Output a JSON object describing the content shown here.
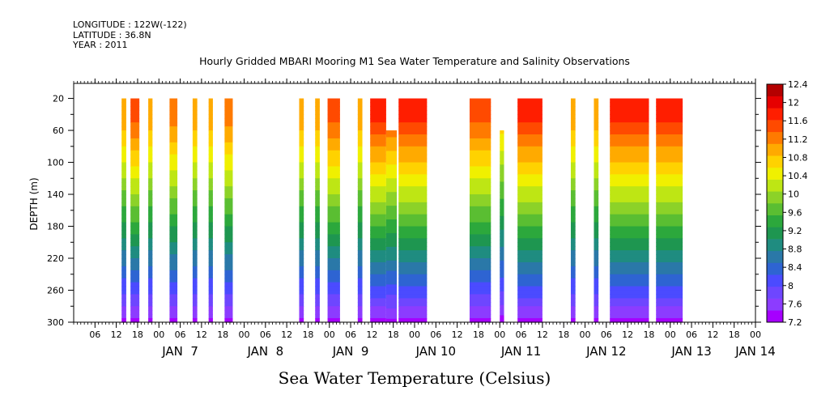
{
  "header": {
    "longitude": "LONGITUDE : 122W(-122)",
    "latitude": "LATITUDE : 36.8N",
    "year": "YEAR : 2011"
  },
  "chart_data": {
    "type": "heatmap",
    "title": "Hourly Gridded MBARI Mooring M1 Sea Water Temperature and Salinity Observations",
    "variable_label": "Sea Water Temperature (Celsius)",
    "ylabel": "DEPTH (m)",
    "x_axis": {
      "unit": "hours since Jan 6 00:00 (2011)",
      "range": [
        0,
        192
      ],
      "hour_ticks": [
        "06",
        "12",
        "18",
        "00",
        "06",
        "12",
        "18",
        "00",
        "06",
        "12",
        "18",
        "00",
        "06",
        "12",
        "18",
        "00",
        "06",
        "12",
        "18",
        "00",
        "06",
        "12",
        "18",
        "00",
        "06",
        "12",
        "18",
        "00",
        "06",
        "12",
        "18",
        "00"
      ],
      "date_labels": [
        {
          "label": "JAN  7",
          "hour": 30
        },
        {
          "label": "JAN  8",
          "hour": 54
        },
        {
          "label": "JAN  9",
          "hour": 78
        },
        {
          "label": "JAN 10",
          "hour": 102
        },
        {
          "label": "JAN 11",
          "hour": 126
        },
        {
          "label": "JAN 12",
          "hour": 150
        },
        {
          "label": "JAN 13",
          "hour": 174
        },
        {
          "label": "JAN 14",
          "hour": 192
        }
      ]
    },
    "y_axis": {
      "range": [
        300,
        0
      ],
      "inverted": true,
      "tick_labels": [
        "20",
        "60",
        "100",
        "140",
        "180",
        "220",
        "260",
        "300"
      ],
      "tick_values": [
        20,
        60,
        100,
        140,
        180,
        220,
        260,
        300
      ]
    },
    "colorbar": {
      "labels": [
        "12.4",
        "12",
        "11.6",
        "11.2",
        "10.8",
        "10.4",
        "10",
        "9.6",
        "9.2",
        "8.8",
        "8.4",
        "8",
        "7.6",
        "7.2"
      ],
      "min": 7.2,
      "max": 12.4,
      "step": 0.2
    },
    "colors": [
      "#a600ff",
      "#8c3cff",
      "#6e46ff",
      "#4b4bff",
      "#2e64d2",
      "#2a78a8",
      "#1f8c80",
      "#1e9650",
      "#2ca83c",
      "#5abe32",
      "#8cd228",
      "#bee614",
      "#f0f000",
      "#ffd200",
      "#ffaa00",
      "#ff7a00",
      "#ff4a00",
      "#ff1e00",
      "#e60000",
      "#b40000"
    ],
    "segments": [
      {
        "start": 13.5,
        "end": 14.8,
        "top": 20,
        "warm": 0.85
      },
      {
        "start": 16.0,
        "end": 18.5,
        "top": 20,
        "warm": 0.95
      },
      {
        "start": 21.0,
        "end": 22.2,
        "top": 20,
        "warm": 0.85
      },
      {
        "start": 27.0,
        "end": 29.2,
        "top": 20,
        "warm": 0.9
      },
      {
        "start": 33.5,
        "end": 34.8,
        "top": 20,
        "warm": 0.85
      },
      {
        "start": 38.0,
        "end": 39.2,
        "top": 20,
        "warm": 0.85
      },
      {
        "start": 42.5,
        "end": 44.8,
        "top": 20,
        "warm": 0.9
      },
      {
        "start": 63.5,
        "end": 64.8,
        "top": 20,
        "warm": 0.85
      },
      {
        "start": 68.0,
        "end": 69.3,
        "top": 20,
        "warm": 0.85
      },
      {
        "start": 71.5,
        "end": 75.0,
        "top": 20,
        "warm": 0.95
      },
      {
        "start": 80.0,
        "end": 81.3,
        "top": 20,
        "warm": 0.85
      },
      {
        "start": 83.5,
        "end": 88.0,
        "top": 20,
        "warm": 1.0
      },
      {
        "start": 88.0,
        "end": 91.0,
        "top": 60,
        "warm": 0.95
      },
      {
        "start": 91.5,
        "end": 99.5,
        "top": 20,
        "warm": 1.0
      },
      {
        "start": 111.5,
        "end": 117.5,
        "top": 20,
        "warm": 0.95
      },
      {
        "start": 120.0,
        "end": 121.2,
        "top": 60,
        "warm": 0.8
      },
      {
        "start": 125.0,
        "end": 132.0,
        "top": 20,
        "warm": 1.0
      },
      {
        "start": 140.0,
        "end": 141.3,
        "top": 20,
        "warm": 0.85
      },
      {
        "start": 146.5,
        "end": 147.8,
        "top": 20,
        "warm": 0.85
      },
      {
        "start": 151.0,
        "end": 162.0,
        "top": 20,
        "warm": 1.0
      },
      {
        "start": 164.0,
        "end": 171.5,
        "top": 20,
        "warm": 1.0
      }
    ]
  }
}
